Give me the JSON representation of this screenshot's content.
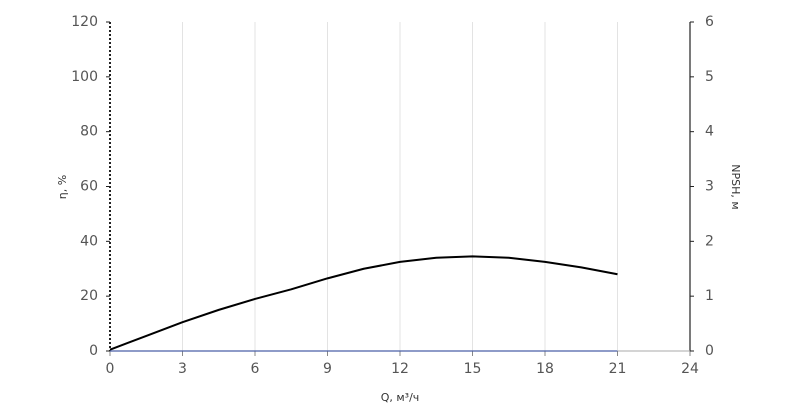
{
  "chart_data": {
    "type": "line",
    "xlabel": "Q, м³/ч",
    "ylabel": "η, %",
    "y2label": "NPSH, м",
    "x": [
      0,
      1.5,
      3,
      4.5,
      6,
      7.5,
      9,
      10.5,
      12,
      13.5,
      15,
      16.5,
      18,
      19.5,
      21
    ],
    "series": [
      {
        "color": "#000000",
        "values": [
          0.5,
          5.5,
          10.5,
          15,
          19,
          22.5,
          26.5,
          30,
          32.5,
          34,
          34.5,
          34,
          32.5,
          30.5,
          28
        ]
      },
      {
        "color": "#4a5fa8",
        "axis": "y2",
        "values": [
          0,
          0,
          0,
          0,
          0,
          0,
          0,
          0,
          0,
          0,
          0,
          0,
          0,
          0,
          0
        ]
      }
    ],
    "xlim": [
      0,
      24
    ],
    "xticks": [
      0,
      3,
      6,
      9,
      12,
      15,
      18,
      21,
      24
    ],
    "ylim": [
      0,
      120
    ],
    "yticks": [
      0,
      20,
      40,
      60,
      80,
      100,
      120
    ],
    "y2lim": [
      0,
      6
    ],
    "y2ticks": [
      0,
      1,
      2,
      3,
      4,
      5,
      6
    ],
    "grid": "x"
  }
}
